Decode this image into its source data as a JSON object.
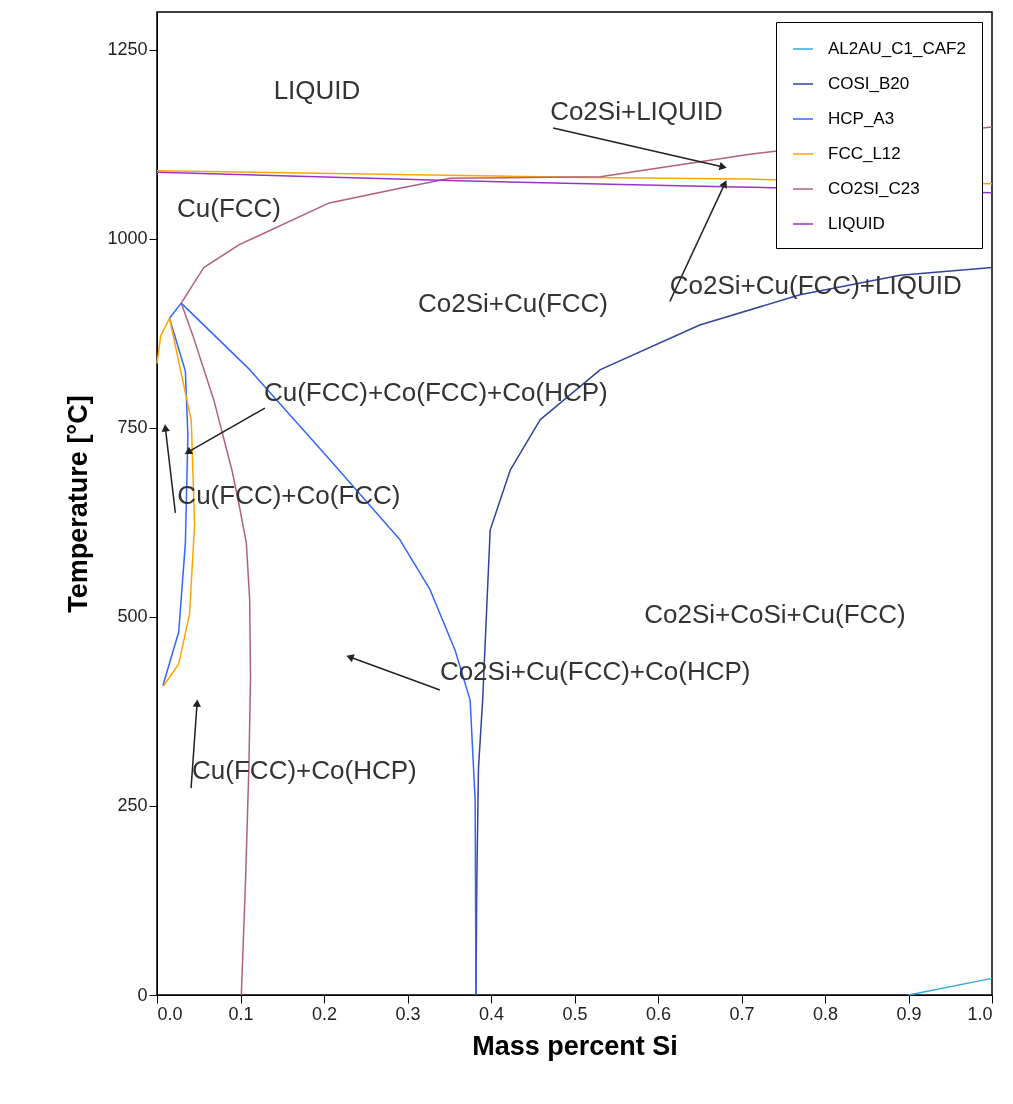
{
  "chart_data": {
    "type": "line",
    "xlabel": "Mass percent Si",
    "ylabel": "Temperature [°C]",
    "xlim": [
      0,
      1
    ],
    "ylim": [
      0,
      1300
    ],
    "xticks": [
      {
        "value": 0,
        "label": "0.0"
      },
      0.1,
      0.2,
      0.3,
      0.4,
      0.5,
      0.6,
      0.7,
      0.8,
      0.9,
      {
        "value": 1,
        "label": "1.0"
      }
    ],
    "yticks": [
      0,
      250,
      500,
      750,
      1000,
      1250
    ],
    "grid": false,
    "legend": "top right",
    "marker": "none",
    "line_style": "solid",
    "series": [
      {
        "name": "AL2AU_C1_CAF2",
        "color": "#33aadd",
        "x": [
          0.9,
          1.0
        ],
        "values": [
          0,
          22
        ]
      },
      {
        "name": "COSI_B20",
        "color": "#334499",
        "x": [
          0.382,
          0.383,
          0.385,
          0.39,
          0.399,
          0.423,
          0.459,
          0.531,
          0.65,
          0.77,
          0.89,
          1.0
        ],
        "values": [
          0,
          150,
          300,
          390,
          615,
          694,
          761,
          827,
          886,
          926,
          952,
          962
        ]
      },
      {
        "name": "HCP_A3",
        "color": "#3366ff",
        "x": [
          0.007,
          0.026,
          0.034,
          0.037,
          0.034,
          0.015,
          0.029,
          0.111,
          0.207,
          0.291,
          0.327,
          0.357,
          0.375,
          0.381,
          0.382
        ],
        "values": [
          409,
          480,
          598,
          740,
          825,
          895,
          915,
          827,
          708,
          602,
          536,
          456,
          390,
          258,
          0
        ]
      },
      {
        "name": "FCC_L12",
        "color": "#ffa500",
        "x": [
          0,
          0.52,
          0.705,
          1.0,
          null,
          0,
          0.0045,
          0.015,
          0.041,
          0.043,
          0.045,
          0.039,
          0.026,
          0.008
        ],
        "values": [
          1090,
          1081,
          1079,
          1073,
          null,
          835,
          872,
          895,
          760,
          693,
          622,
          504,
          438,
          409
        ]
      },
      {
        "name": "CO2SI_C23",
        "color": "#b06080",
        "x": [
          0.101,
          0.106,
          0.11,
          0.112,
          0.111,
          0.107,
          0.098,
          0.09,
          0.068,
          0.043,
          0.029,
          0.056,
          0.098,
          0.205,
          0.291,
          0.351,
          0.531,
          0.71,
          1.0
        ],
        "values": [
          0,
          150,
          300,
          420,
          522,
          598,
          650,
          693,
          787,
          872,
          915,
          962,
          992,
          1047,
          1067,
          1080,
          1082,
          1112,
          1148
        ]
      },
      {
        "name": "LIQUID",
        "color": "#9933cc",
        "x": [
          0,
          0.35,
          0.68,
          1.0
        ],
        "values": [
          1088,
          1077,
          1069,
          1061
        ]
      }
    ],
    "annotations": [
      "LIQUID",
      {
        "text": "Co2Si+LIQUID",
        "x": 0.678,
        "y": 1095
      },
      "Cu(FCC)",
      {
        "text": "Co2Si+Cu(FCC)+LIQUID",
        "x": 0.68,
        "y": 1073
      },
      "Co2Si+Cu(FCC)",
      {
        "text": "Cu(FCC)+Co(FCC)+Co(HCP)",
        "x": 0.037,
        "y": 718
      },
      {
        "text": "Cu(FCC)+Co(FCC)",
        "x": 0.01,
        "y": 750
      },
      "Co2Si+CoSi+Cu(FCC)",
      {
        "text": "Co2Si+Cu(FCC)+Co(HCP)",
        "x": 0.231,
        "y": 447
      },
      {
        "text": "Cu(FCC)+Co(HCP)",
        "x": 0.048,
        "y": 386
      }
    ]
  }
}
